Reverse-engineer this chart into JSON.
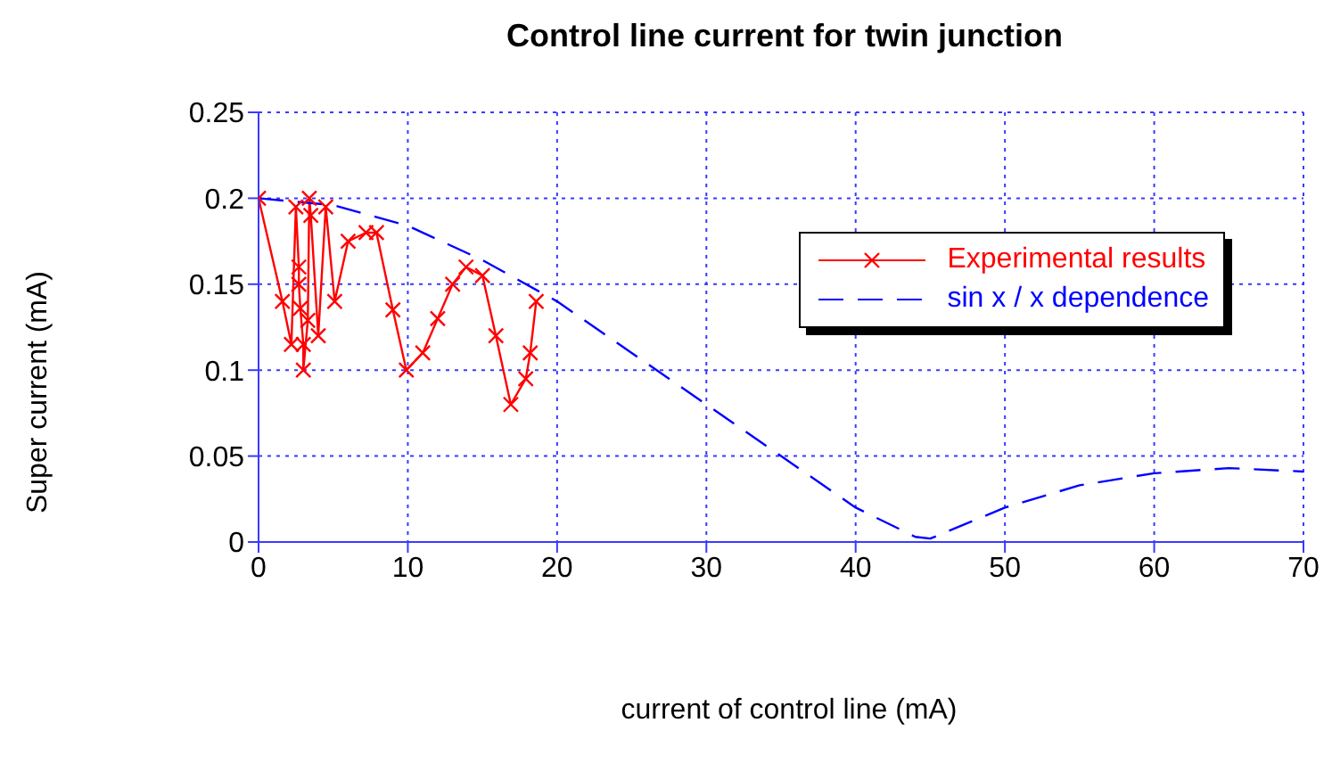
{
  "chart_data": {
    "type": "line",
    "title": "Control line current for twin junction",
    "xlabel": "current of control line (mA)",
    "ylabel": "Super current (mA)",
    "xlim": [
      0,
      70
    ],
    "xticks": [
      0,
      10,
      20,
      30,
      40,
      50,
      60,
      70
    ],
    "ylim": [
      0,
      0.25
    ],
    "yticks": [
      0,
      0.05,
      0.1,
      0.15,
      0.2,
      0.25
    ],
    "grid": true,
    "legend": "top right",
    "series": [
      {
        "name": "Experimental results",
        "color": "#ff0000",
        "marker": "cross",
        "line_style": "solid",
        "x": [
          0,
          1.6,
          2.2,
          2.5,
          2.7,
          2.7,
          2.8,
          3.0,
          3.0,
          3.3,
          3.4,
          3.5,
          4.0,
          4.5,
          5.1,
          6.0,
          7.2,
          7.9,
          9.0,
          9.9,
          11,
          12,
          13,
          13.9,
          15,
          15.9,
          16.9,
          17.9,
          18.2,
          18.6
        ],
        "values": [
          0.2,
          0.14,
          0.115,
          0.195,
          0.16,
          0.15,
          0.136,
          0.115,
          0.1,
          0.129,
          0.2,
          0.19,
          0.12,
          0.195,
          0.14,
          0.175,
          0.18,
          0.18,
          0.135,
          0.1,
          0.11,
          0.13,
          0.15,
          0.16,
          0.155,
          0.12,
          0.08,
          0.095,
          0.11,
          0.14
        ]
      },
      {
        "name": "sin x / x dependence",
        "color": "#0000ff",
        "marker": "none",
        "line_style": "dashed",
        "x": [
          0,
          5,
          10,
          15,
          20,
          25,
          30,
          35,
          40,
          44,
          45,
          50,
          55,
          60,
          65,
          70
        ],
        "values": [
          0.2,
          0.196,
          0.184,
          0.164,
          0.14,
          0.11,
          0.08,
          0.05,
          0.02,
          0.003,
          0.002,
          0.02,
          0.033,
          0.04,
          0.043,
          0.041
        ]
      }
    ]
  }
}
